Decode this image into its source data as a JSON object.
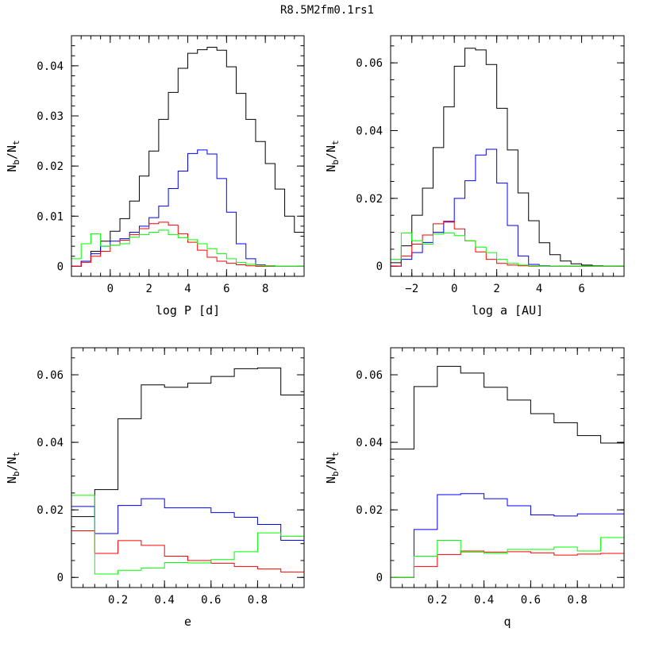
{
  "figure_title": "R8.5M2fm0.1rs1",
  "colors": {
    "black": "#000000",
    "blue": "#0000ff",
    "red": "#ff0000",
    "green": "#00ff00"
  },
  "chart_data": [
    {
      "type": "line",
      "step": true,
      "xlabel": "log P [d]",
      "ylabel_main": "N",
      "ylabel_sub1": "b",
      "ylabel_sep": "/N",
      "ylabel_sub2": "t",
      "xlim": [
        -2,
        10
      ],
      "ylim": [
        -0.002,
        0.046
      ],
      "xticks": [
        0,
        2,
        4,
        6,
        8
      ],
      "xtick_labels": [
        "0",
        "2",
        "4",
        "6",
        "8"
      ],
      "yticks": [
        0,
        0.01,
        0.02,
        0.03,
        0.04
      ],
      "ytick_labels": [
        "0",
        "0.01",
        "0.02",
        "0.03",
        "0.04"
      ],
      "x_minor_step": 0.5,
      "y_minor_step": 0.002,
      "bin_edges": [
        -2,
        -1.5,
        -1,
        -0.5,
        0,
        0.5,
        1,
        1.5,
        2,
        2.5,
        3,
        3.5,
        4,
        4.5,
        5,
        5.5,
        6,
        6.5,
        7,
        7.5,
        8,
        8.5,
        9,
        9.5,
        10
      ],
      "series": [
        {
          "color": "black",
          "values": [
            0.0,
            0.001,
            0.003,
            0.005,
            0.007,
            0.0095,
            0.013,
            0.018,
            0.023,
            0.0293,
            0.0347,
            0.0395,
            0.0425,
            0.0432,
            0.0437,
            0.0431,
            0.0398,
            0.0345,
            0.0293,
            0.0249,
            0.0205,
            0.0154,
            0.01,
            0.0068,
            0.0045
          ]
        },
        {
          "color": "blue",
          "values": [
            0.0,
            0.001,
            0.0025,
            0.004,
            0.005,
            0.0055,
            0.0068,
            0.008,
            0.0097,
            0.012,
            0.0155,
            0.019,
            0.0225,
            0.0232,
            0.0224,
            0.0175,
            0.0108,
            0.0045,
            0.0015,
            0.0003,
            0.0001,
            0.0,
            0.0,
            0.0,
            0.0
          ]
        },
        {
          "color": "red",
          "values": [
            0.0,
            0.0008,
            0.002,
            0.003,
            0.0042,
            0.0052,
            0.0063,
            0.0075,
            0.0085,
            0.0088,
            0.0082,
            0.0065,
            0.0048,
            0.0032,
            0.0018,
            0.001,
            0.0006,
            0.0003,
            0.0001,
            0.0,
            0.0,
            0.0,
            0.0,
            0.0,
            0.0
          ]
        },
        {
          "color": "green",
          "values": [
            0.0015,
            0.0045,
            0.0065,
            0.004,
            0.0042,
            0.0045,
            0.0058,
            0.0063,
            0.0068,
            0.0072,
            0.0063,
            0.0057,
            0.0053,
            0.0045,
            0.0035,
            0.0025,
            0.0015,
            0.0008,
            0.0004,
            0.0002,
            0.0001,
            0.0,
            0.0,
            0.0,
            0.0
          ]
        }
      ]
    },
    {
      "type": "line",
      "step": true,
      "xlabel": "log a [AU]",
      "ylabel_main": "N",
      "ylabel_sub1": "b",
      "ylabel_sep": "/N",
      "ylabel_sub2": "t",
      "xlim": [
        -3,
        8
      ],
      "ylim": [
        -0.003,
        0.068
      ],
      "xticks": [
        -2,
        0,
        2,
        4,
        6
      ],
      "xtick_labels": [
        "−2",
        "0",
        "2",
        "4",
        "6"
      ],
      "yticks": [
        0,
        0.02,
        0.04,
        0.06
      ],
      "ytick_labels": [
        "0",
        "0.02",
        "0.04",
        "0.06"
      ],
      "x_minor_step": 0.5,
      "y_minor_step": 0.005,
      "bin_edges": [
        -3,
        -2.5,
        -2,
        -1.5,
        -1,
        -0.5,
        0,
        0.5,
        1,
        1.5,
        2,
        2.5,
        3,
        3.5,
        4,
        4.5,
        5,
        5.5,
        6,
        6.5,
        7,
        7.5,
        8
      ],
      "series": [
        {
          "color": "black",
          "values": [
            0.001,
            0.006,
            0.015,
            0.023,
            0.035,
            0.047,
            0.059,
            0.0643,
            0.0638,
            0.0595,
            0.0466,
            0.0343,
            0.0216,
            0.0134,
            0.0069,
            0.0034,
            0.0015,
            0.0007,
            0.0003,
            0.0001,
            0.0,
            0.0
          ]
        },
        {
          "color": "blue",
          "values": [
            0.0,
            0.002,
            0.004,
            0.007,
            0.01,
            0.013,
            0.02,
            0.0252,
            0.0328,
            0.0345,
            0.0245,
            0.012,
            0.003,
            0.0005,
            0.0001,
            0.0,
            0.0,
            0.0,
            0.0,
            0.0,
            0.0,
            0.0
          ]
        },
        {
          "color": "red",
          "values": [
            0.0,
            0.003,
            0.0065,
            0.0092,
            0.0125,
            0.0133,
            0.011,
            0.0075,
            0.0042,
            0.002,
            0.0008,
            0.0003,
            0.0001,
            0.0,
            0.0,
            0.0,
            0.0,
            0.0,
            0.0,
            0.0,
            0.0,
            0.0
          ]
        },
        {
          "color": "green",
          "values": [
            0.002,
            0.0098,
            0.0075,
            0.0065,
            0.0095,
            0.0098,
            0.009,
            0.0075,
            0.0056,
            0.004,
            0.002,
            0.0008,
            0.0003,
            0.0001,
            0.0,
            0.0,
            0.0,
            0.0,
            0.0,
            0.0,
            0.0,
            0.0
          ]
        }
      ]
    },
    {
      "type": "line",
      "step": true,
      "xlabel": "e",
      "ylabel_main": "N",
      "ylabel_sub1": "b",
      "ylabel_sep": "/N",
      "ylabel_sub2": "t",
      "xlim": [
        0,
        1
      ],
      "ylim": [
        -0.003,
        0.068
      ],
      "xticks": [
        0.2,
        0.4,
        0.6,
        0.8
      ],
      "xtick_labels": [
        "0.2",
        "0.4",
        "0.6",
        "0.8"
      ],
      "yticks": [
        0,
        0.02,
        0.04,
        0.06
      ],
      "ytick_labels": [
        "0",
        "0.02",
        "0.04",
        "0.06"
      ],
      "x_minor_step": 0.05,
      "y_minor_step": 0.005,
      "bin_edges": [
        0,
        0.1,
        0.2,
        0.3,
        0.4,
        0.5,
        0.6,
        0.7,
        0.8,
        0.9,
        1.0
      ],
      "series": [
        {
          "color": "black",
          "values": [
            0.018,
            0.026,
            0.047,
            0.057,
            0.0563,
            0.0575,
            0.0595,
            0.0618,
            0.062,
            0.054
          ]
        },
        {
          "color": "blue",
          "values": [
            0.021,
            0.013,
            0.0213,
            0.0233,
            0.0206,
            0.0206,
            0.0192,
            0.0178,
            0.0157,
            0.011
          ]
        },
        {
          "color": "red",
          "values": [
            0.0138,
            0.0071,
            0.0109,
            0.0095,
            0.0063,
            0.005,
            0.0042,
            0.0032,
            0.0025,
            0.0016
          ]
        },
        {
          "color": "green",
          "values": [
            0.0243,
            0.001,
            0.0021,
            0.0028,
            0.0044,
            0.0043,
            0.0053,
            0.0076,
            0.0132,
            0.0122
          ]
        }
      ]
    },
    {
      "type": "line",
      "step": true,
      "xlabel": "q",
      "ylabel_main": "N",
      "ylabel_sub1": "b",
      "ylabel_sep": "/N",
      "ylabel_sub2": "t",
      "xlim": [
        0,
        1
      ],
      "ylim": [
        -0.003,
        0.068
      ],
      "xticks": [
        0.2,
        0.4,
        0.6,
        0.8
      ],
      "xtick_labels": [
        "0.2",
        "0.4",
        "0.6",
        "0.8"
      ],
      "yticks": [
        0,
        0.02,
        0.04,
        0.06
      ],
      "ytick_labels": [
        "0",
        "0.02",
        "0.04",
        "0.06"
      ],
      "x_minor_step": 0.05,
      "y_minor_step": 0.005,
      "bin_edges": [
        0,
        0.1,
        0.2,
        0.3,
        0.4,
        0.5,
        0.6,
        0.7,
        0.8,
        0.9,
        1.0
      ],
      "series": [
        {
          "color": "black",
          "values": [
            0.038,
            0.0565,
            0.0625,
            0.0605,
            0.0563,
            0.0525,
            0.0485,
            0.0458,
            0.042,
            0.0398
          ]
        },
        {
          "color": "blue",
          "values": [
            0.0,
            0.0142,
            0.0245,
            0.0248,
            0.0233,
            0.0212,
            0.0185,
            0.0182,
            0.0188,
            0.0188
          ]
        },
        {
          "color": "red",
          "values": [
            0.0,
            0.0032,
            0.0068,
            0.0078,
            0.0075,
            0.0076,
            0.0073,
            0.0066,
            0.0069,
            0.0071
          ]
        },
        {
          "color": "green",
          "values": [
            0.0,
            0.0063,
            0.011,
            0.0075,
            0.0071,
            0.0083,
            0.0083,
            0.009,
            0.0078,
            0.0118
          ]
        }
      ]
    }
  ]
}
